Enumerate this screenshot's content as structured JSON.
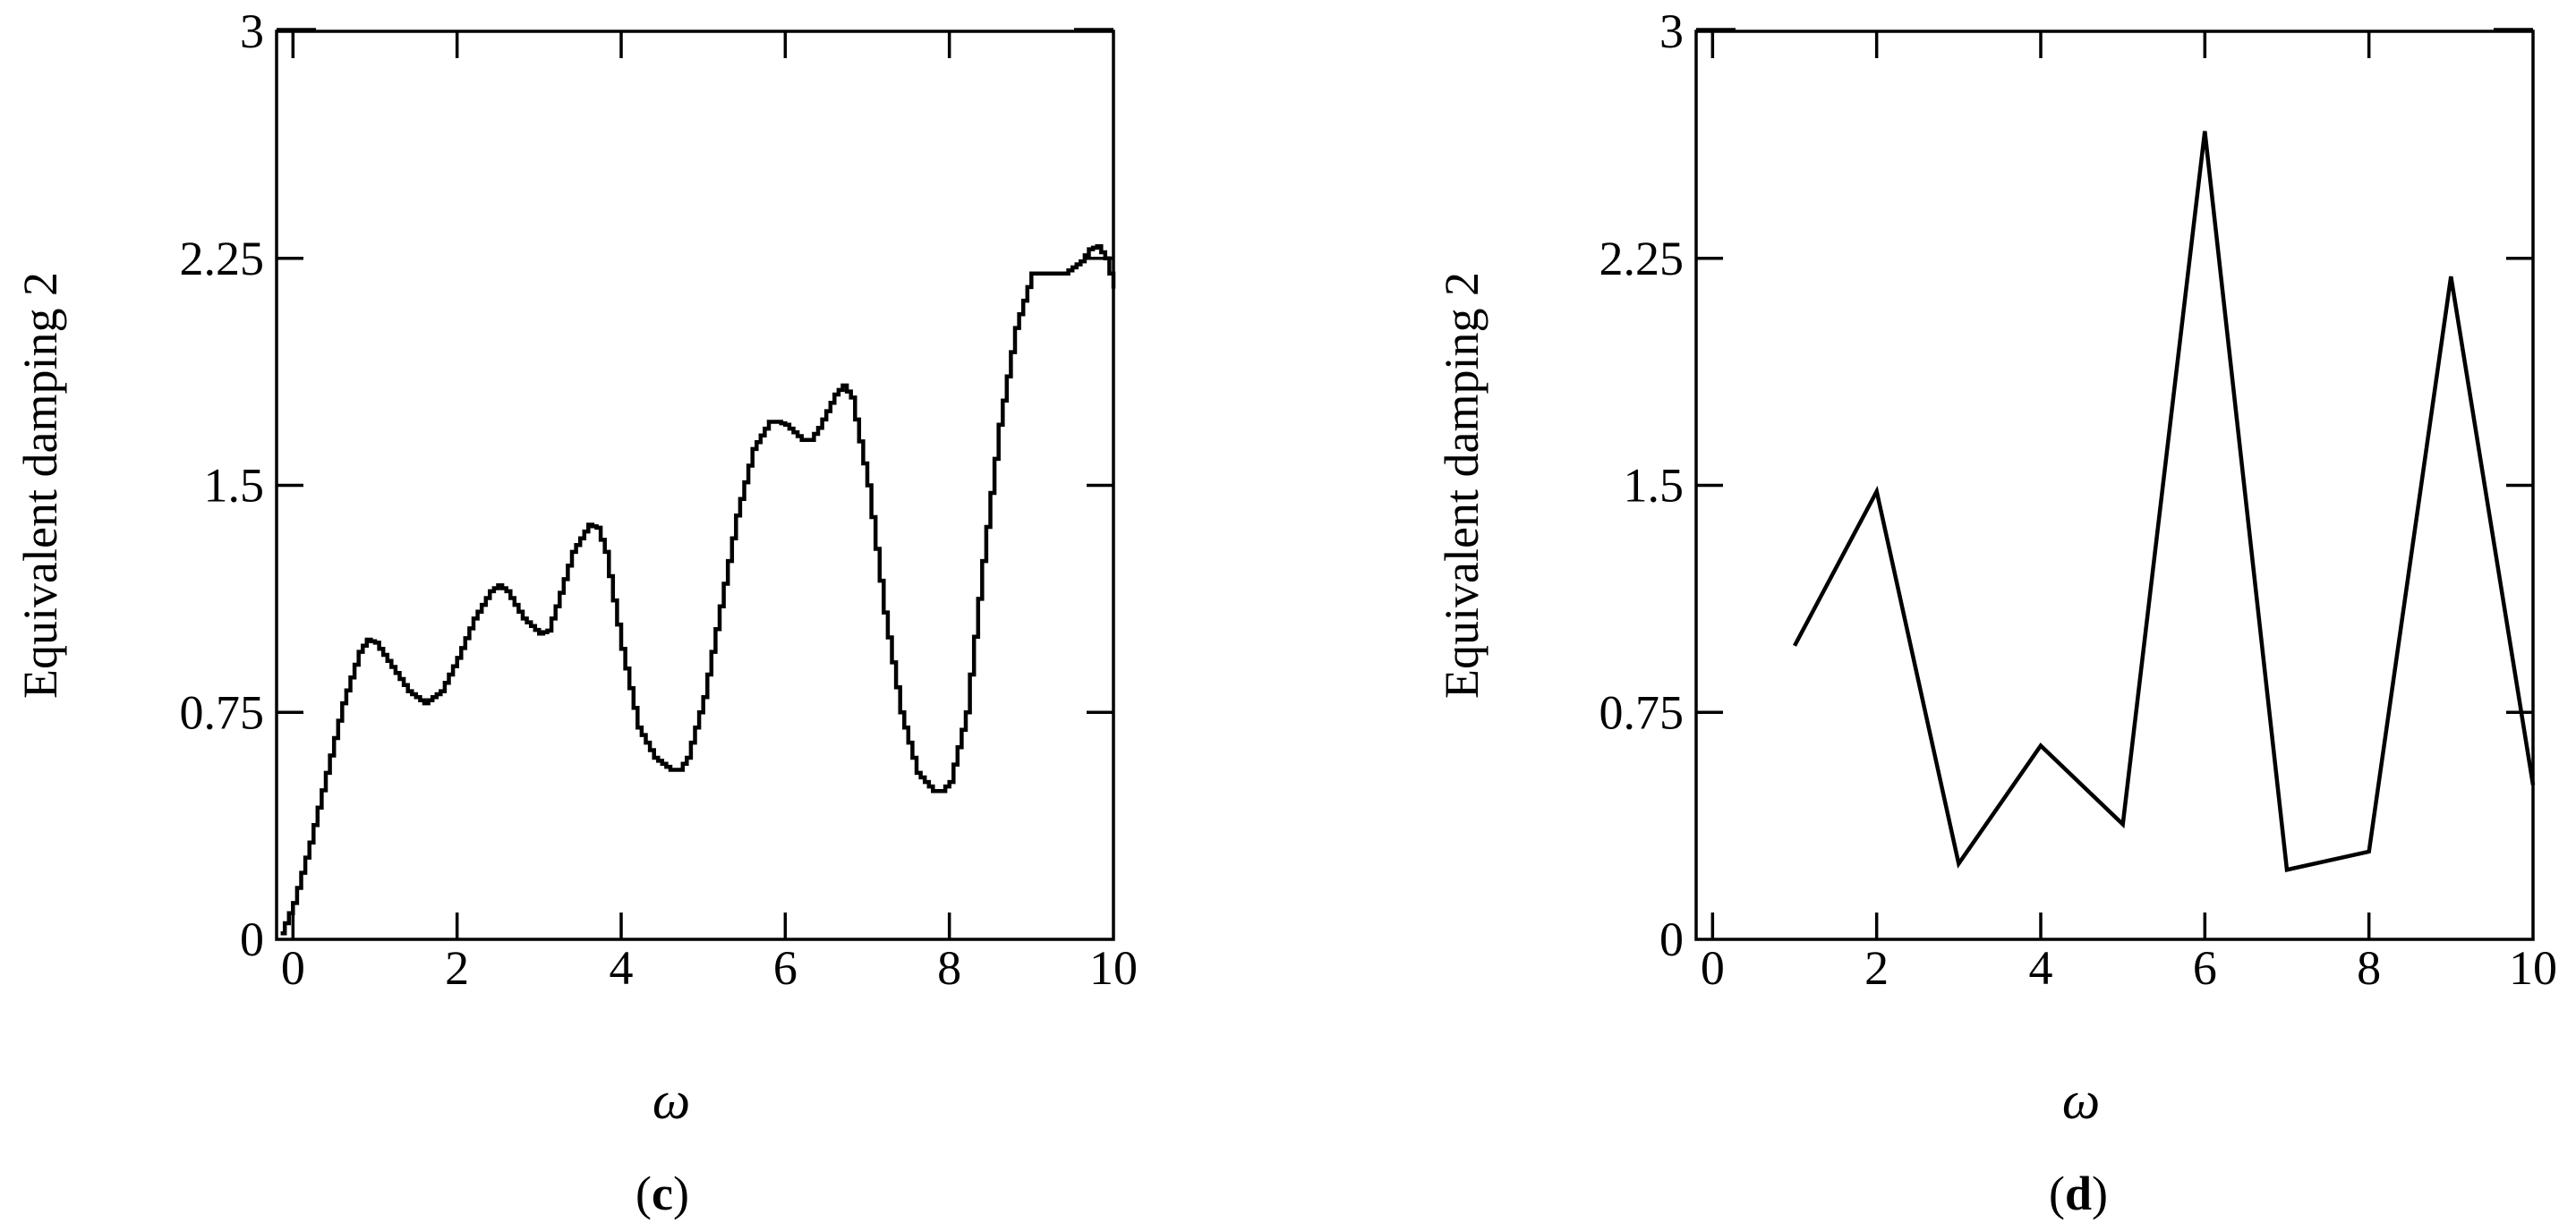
{
  "chart_data": [
    {
      "panel": "c",
      "type": "line",
      "style": "step",
      "title": "",
      "xlabel": "ω",
      "ylabel": "Equivalent damping 2",
      "xlim": [
        -0.2,
        10
      ],
      "ylim": [
        0,
        3
      ],
      "xticks": [
        0,
        2,
        4,
        6,
        8,
        10
      ],
      "yticks": [
        0,
        0.75,
        1.5,
        2.25,
        3
      ],
      "ytick_labels": [
        "0",
        "0.75",
        "1.5",
        "2.25",
        "3"
      ],
      "grid": false,
      "color": "#000000",
      "series": [
        {
          "x": [
            -0.15,
            0,
            0.2,
            0.4,
            0.6,
            0.8,
            0.9,
            1.0,
            1.2,
            1.4,
            1.6,
            1.8,
            2.0,
            2.2,
            2.4,
            2.5,
            2.6,
            2.8,
            3.0,
            3.1,
            3.2,
            3.4,
            3.6,
            3.7,
            3.8,
            4.0,
            4.2,
            4.4,
            4.6,
            4.7,
            4.8,
            5.0,
            5.2,
            5.4,
            5.6,
            5.8,
            5.9,
            6.0,
            6.2,
            6.3,
            6.4,
            6.6,
            6.7,
            6.8,
            7.0,
            7.2,
            7.4,
            7.6,
            7.8,
            7.9,
            8.0,
            8.2,
            8.4,
            8.6,
            8.8,
            9.0,
            9.2,
            9.4,
            9.6,
            9.7,
            9.8,
            9.9,
            10.0
          ],
          "y": [
            0.02,
            0.12,
            0.32,
            0.55,
            0.78,
            0.95,
            0.99,
            0.98,
            0.9,
            0.82,
            0.78,
            0.82,
            0.93,
            1.06,
            1.15,
            1.17,
            1.15,
            1.06,
            1.01,
            1.02,
            1.1,
            1.28,
            1.37,
            1.36,
            1.28,
            0.96,
            0.7,
            0.6,
            0.56,
            0.56,
            0.6,
            0.8,
            1.1,
            1.4,
            1.62,
            1.71,
            1.71,
            1.7,
            1.65,
            1.65,
            1.69,
            1.8,
            1.83,
            1.79,
            1.5,
            1.08,
            0.75,
            0.55,
            0.49,
            0.49,
            0.52,
            0.75,
            1.25,
            1.7,
            2.02,
            2.2,
            2.2,
            2.2,
            2.24,
            2.28,
            2.29,
            2.25,
            2.15
          ]
        }
      ],
      "caption": "c"
    },
    {
      "panel": "d",
      "type": "line",
      "title": "",
      "xlabel": "ω",
      "ylabel": "Equivalent damping 2",
      "xlim": [
        -0.2,
        10
      ],
      "ylim": [
        0,
        3
      ],
      "xticks": [
        0,
        2,
        4,
        6,
        8,
        10
      ],
      "yticks": [
        0,
        0.75,
        1.5,
        2.25,
        3
      ],
      "ytick_labels": [
        "0",
        "0.75",
        "1.5",
        "2.25",
        "3"
      ],
      "grid": false,
      "color": "#000000",
      "series": [
        {
          "x": [
            1,
            2,
            3,
            4,
            5,
            6,
            7,
            8,
            9,
            10
          ],
          "y": [
            0.97,
            1.48,
            0.25,
            0.64,
            0.38,
            2.67,
            0.23,
            0.29,
            2.19,
            0.51
          ]
        }
      ],
      "caption": "d"
    }
  ]
}
